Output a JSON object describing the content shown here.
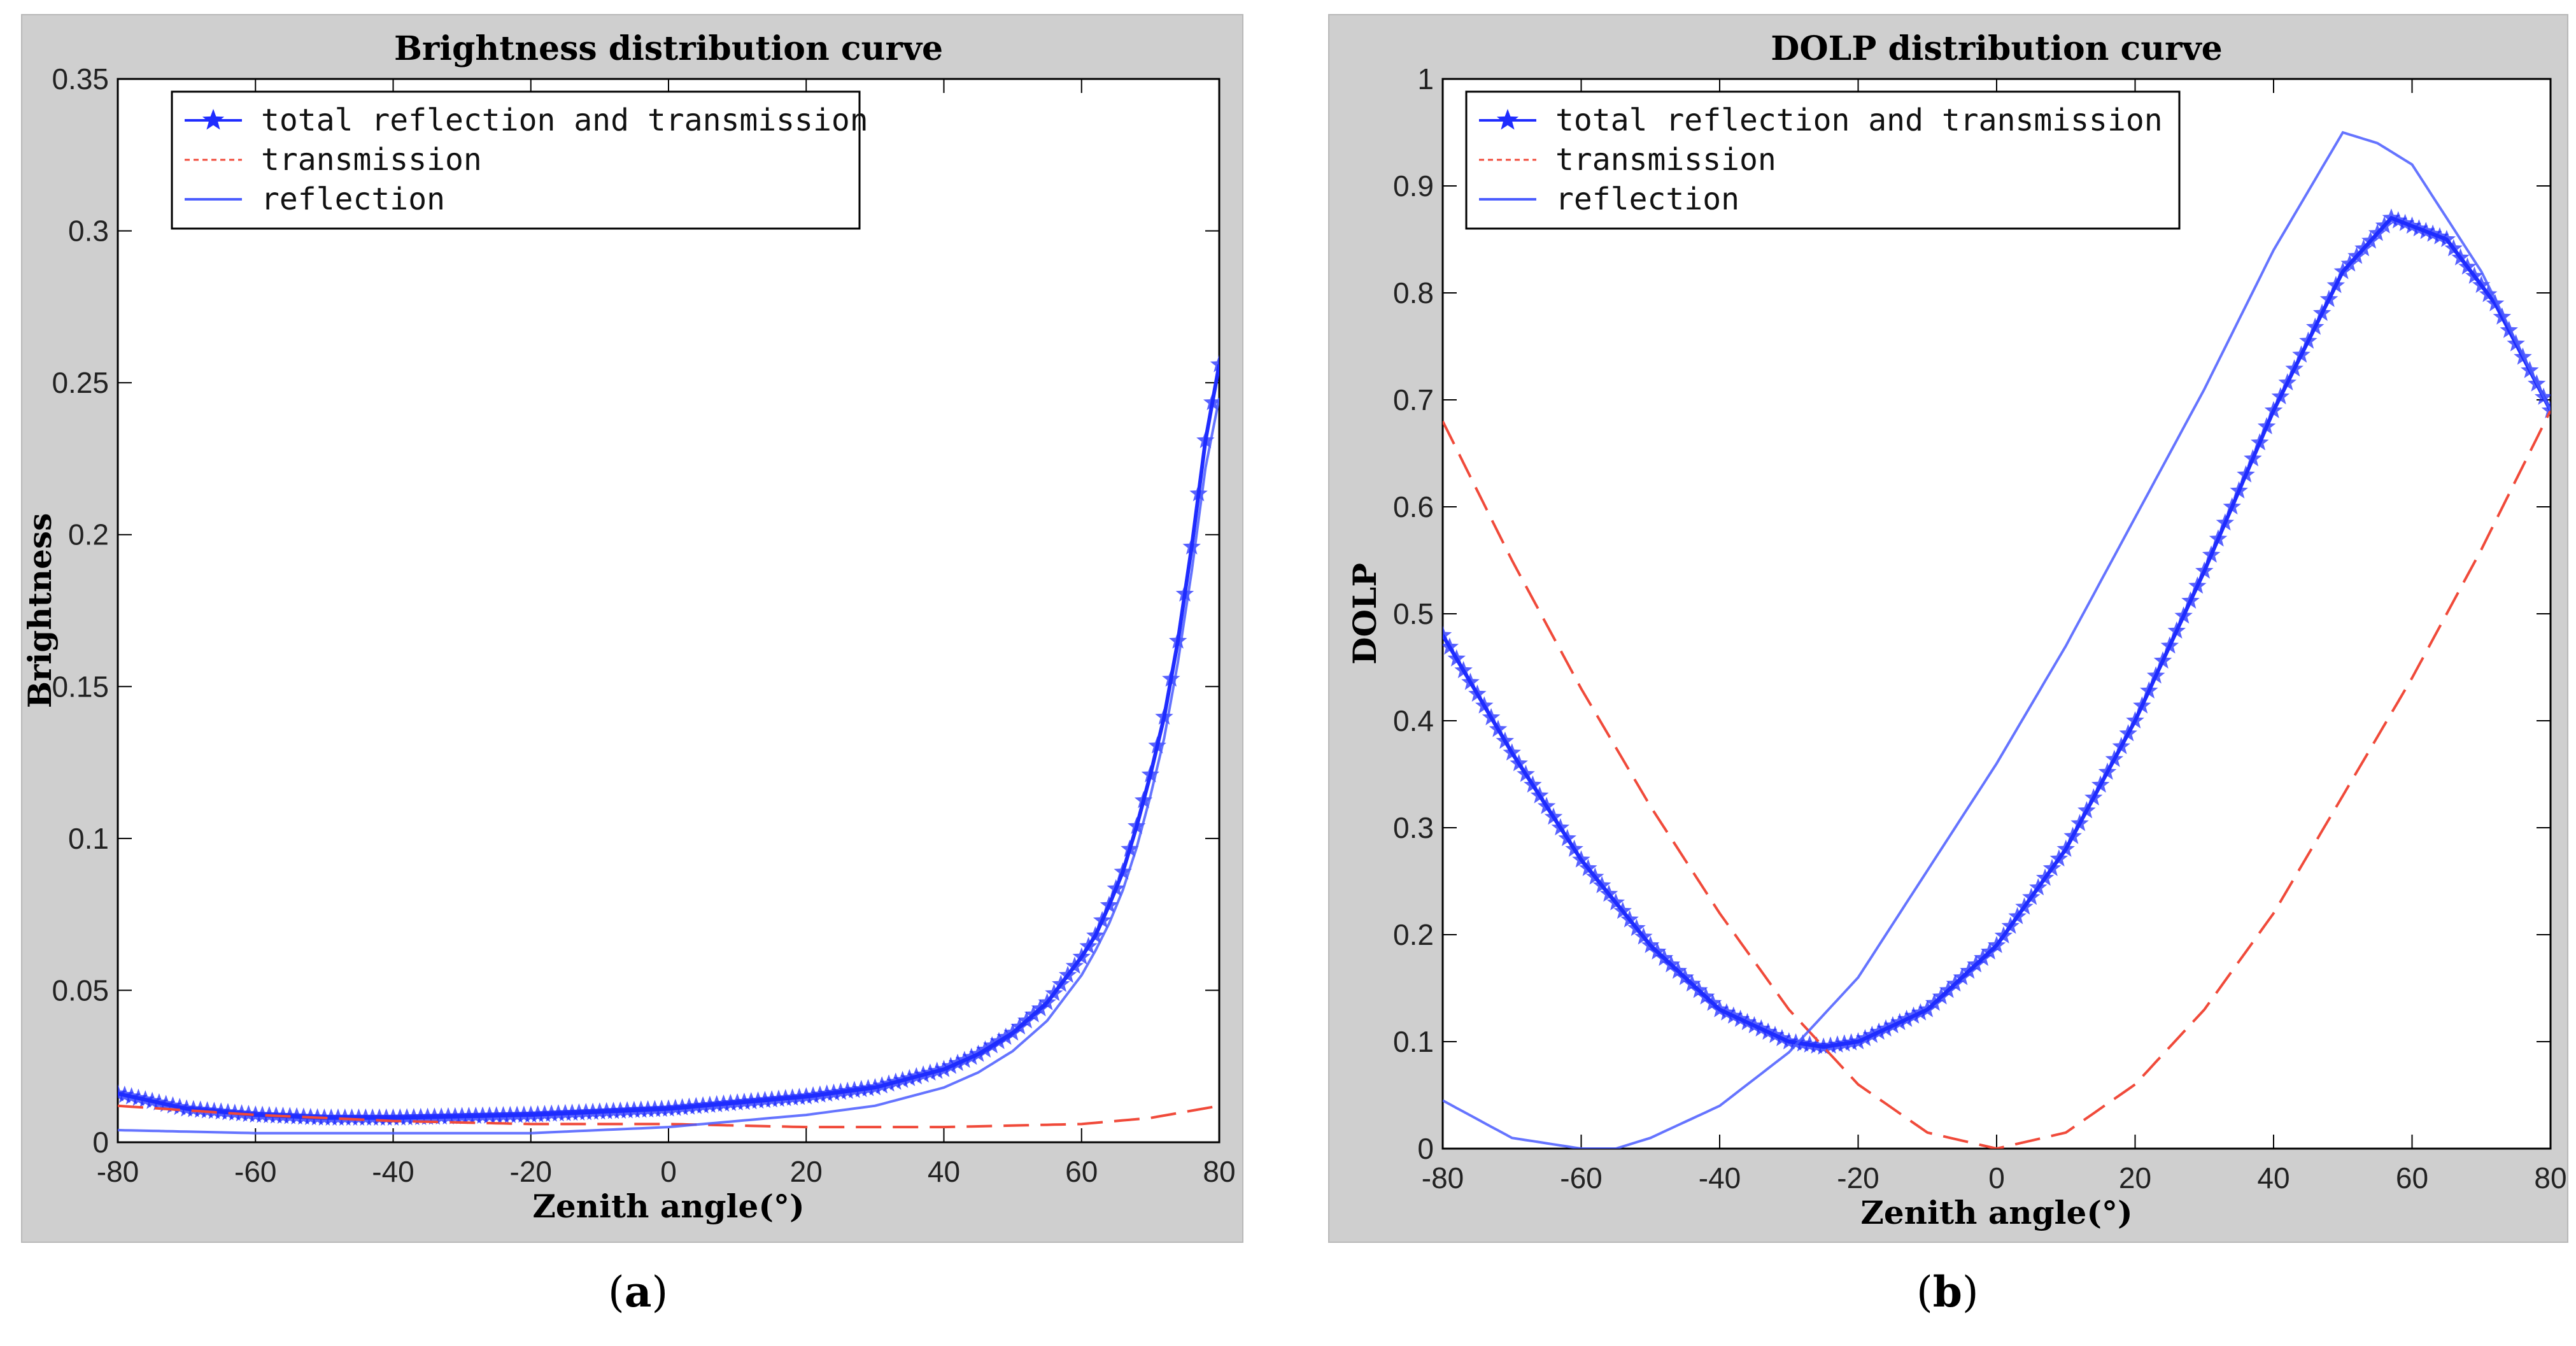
{
  "captions": {
    "a_open": "(",
    "a_letter": "a",
    "a_close": ")",
    "b_open": "(",
    "b_letter": "b",
    "b_close": ")"
  },
  "colors": {
    "total": "#1f2cff",
    "transmission": "#f04a3a",
    "reflection": "#4a5cff"
  },
  "chart_data": [
    {
      "type": "line",
      "title": "Brightness distribution curve",
      "xlabel": "Zenith angle(°)",
      "ylabel": "Brightness",
      "xlim": [
        -80,
        80
      ],
      "ylim": [
        0,
        0.35
      ],
      "xticks": [
        "-80",
        "-60",
        "-40",
        "-20",
        "0",
        "20",
        "40",
        "60",
        "80"
      ],
      "yticks": [
        "0",
        "0.05",
        "0.1",
        "0.15",
        "0.2",
        "0.25",
        "0.3",
        "0.35"
      ],
      "legend_position": "top-left",
      "series": [
        {
          "name": "total reflection and transmission",
          "style": "solid-star",
          "x": [
            -80,
            -70,
            -60,
            -50,
            -40,
            -30,
            -20,
            -10,
            0,
            10,
            20,
            30,
            40,
            45,
            50,
            55,
            60,
            62,
            64,
            66,
            68,
            70,
            72,
            74,
            76,
            78,
            80
          ],
          "y": [
            0.016,
            0.011,
            0.009,
            0.008,
            0.008,
            0.0085,
            0.009,
            0.01,
            0.011,
            0.013,
            0.015,
            0.018,
            0.024,
            0.029,
            0.036,
            0.046,
            0.061,
            0.068,
            0.078,
            0.089,
            0.104,
            0.121,
            0.14,
            0.165,
            0.196,
            0.231,
            0.256
          ]
        },
        {
          "name": "transmission",
          "style": "dashed",
          "x": [
            -80,
            -60,
            -40,
            -20,
            0,
            20,
            40,
            60,
            70,
            80
          ],
          "y": [
            0.012,
            0.009,
            0.007,
            0.006,
            0.006,
            0.005,
            0.005,
            0.006,
            0.008,
            0.012
          ]
        },
        {
          "name": "reflection",
          "style": "solid",
          "x": [
            -80,
            -60,
            -40,
            -20,
            0,
            10,
            20,
            30,
            40,
            45,
            50,
            55,
            60,
            62,
            64,
            66,
            68,
            70,
            72,
            74,
            76,
            78,
            80
          ],
          "y": [
            0.004,
            0.003,
            0.003,
            0.003,
            0.005,
            0.007,
            0.009,
            0.012,
            0.018,
            0.023,
            0.03,
            0.04,
            0.055,
            0.063,
            0.072,
            0.083,
            0.097,
            0.114,
            0.133,
            0.158,
            0.188,
            0.222,
            0.245
          ]
        }
      ]
    },
    {
      "type": "line",
      "title": "DOLP distribution curve",
      "xlabel": "Zenith angle(°)",
      "ylabel": "DOLP",
      "xlim": [
        -80,
        80
      ],
      "ylim": [
        0,
        1
      ],
      "xticks": [
        "-80",
        "-60",
        "-40",
        "-20",
        "0",
        "20",
        "40",
        "60",
        "80"
      ],
      "yticks": [
        "0",
        "0.1",
        "0.2",
        "0.3",
        "0.4",
        "0.5",
        "0.6",
        "0.7",
        "0.8",
        "0.9",
        "1"
      ],
      "legend_position": "top-left",
      "series": [
        {
          "name": "total reflection and transmission",
          "style": "solid-star",
          "x": [
            -80,
            -70,
            -60,
            -50,
            -40,
            -30,
            -25,
            -20,
            -10,
            0,
            10,
            20,
            30,
            40,
            50,
            57,
            65,
            72,
            80
          ],
          "y": [
            0.48,
            0.37,
            0.27,
            0.19,
            0.13,
            0.1,
            0.095,
            0.1,
            0.13,
            0.19,
            0.28,
            0.4,
            0.54,
            0.69,
            0.82,
            0.87,
            0.85,
            0.79,
            0.69
          ]
        },
        {
          "name": "transmission",
          "style": "dashed",
          "x": [
            -80,
            -70,
            -60,
            -50,
            -40,
            -30,
            -20,
            -10,
            0,
            10,
            20,
            30,
            40,
            50,
            60,
            70,
            80
          ],
          "y": [
            0.68,
            0.55,
            0.43,
            0.32,
            0.22,
            0.13,
            0.06,
            0.015,
            0.0,
            0.015,
            0.06,
            0.13,
            0.22,
            0.33,
            0.44,
            0.56,
            0.69
          ]
        },
        {
          "name": "reflection",
          "style": "solid",
          "x": [
            -80,
            -70,
            -60,
            -55,
            -50,
            -40,
            -30,
            -20,
            -10,
            0,
            10,
            20,
            30,
            40,
            50,
            55,
            60,
            70,
            80
          ],
          "y": [
            0.045,
            0.01,
            0.0,
            0.0,
            0.01,
            0.04,
            0.09,
            0.16,
            0.26,
            0.36,
            0.47,
            0.59,
            0.71,
            0.84,
            0.95,
            0.94,
            0.92,
            0.82,
            0.69
          ]
        }
      ]
    }
  ]
}
